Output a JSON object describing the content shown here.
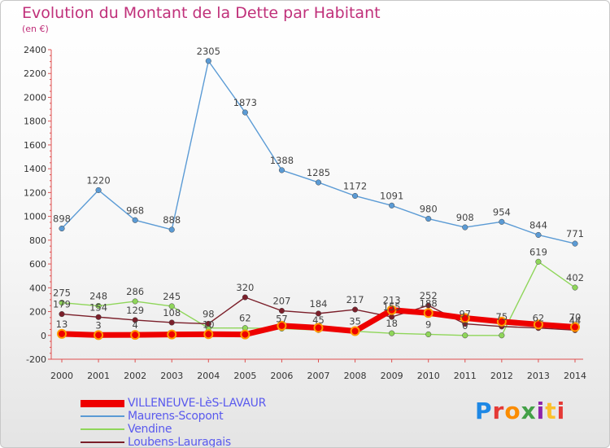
{
  "title": "Evolution du Montant de la Dette par Habitant",
  "subtitle": "(en €)",
  "logo": {
    "text": "Proxiti",
    "colors": [
      "#1e88e5",
      "#e53935",
      "#fb8c00",
      "#43a047",
      "#8e24aa",
      "#fbc02d",
      "#e53935"
    ]
  },
  "chart_data": {
    "type": "line",
    "title": "Evolution du Montant de la Dette par Habitant",
    "subtitle": "(en €)",
    "xlabel": "",
    "ylabel": "",
    "x": [
      "2000",
      "2001",
      "2002",
      "2003",
      "2004",
      "2005",
      "2006",
      "2007",
      "2008",
      "2009",
      "2010",
      "2011",
      "2012",
      "2013",
      "2014"
    ],
    "ylim": [
      -200,
      2400
    ],
    "yticks": [
      -200,
      0,
      200,
      400,
      600,
      800,
      1000,
      1200,
      1400,
      1600,
      1800,
      2000,
      2200,
      2400
    ],
    "grid": false,
    "legend_position": "bottom-left",
    "series": [
      {
        "name": "VILLENEUVE-LèS-LAVAUR",
        "color": "#ee0000",
        "width": 7,
        "values": [
          13,
          3,
          4,
          8,
          10,
          8,
          81,
          64,
          36,
          213,
          188,
          146,
          116,
          92,
          70
        ],
        "labels": [
          "13",
          "3",
          "4",
          "",
          "10",
          "",
          "",
          "",
          "",
          "213",
          "188",
          "",
          "",
          "",
          "70"
        ]
      },
      {
        "name": "Maurens-Scopont",
        "color": "#5b9bd5",
        "width": 1.4,
        "values": [
          898,
          1220,
          968,
          888,
          2305,
          1873,
          1388,
          1285,
          1172,
          1091,
          980,
          908,
          954,
          844,
          771
        ],
        "labels": [
          "898",
          "1220",
          "968",
          "888",
          "2305",
          "1873",
          "1388",
          "1285",
          "1172",
          "1091",
          "980",
          "908",
          "954",
          "844",
          "771"
        ]
      },
      {
        "name": "Vendine",
        "color": "#8fd65a",
        "width": 1.4,
        "values": [
          275,
          248,
          286,
          245,
          62,
          62,
          57,
          45,
          35,
          18,
          9,
          0,
          0,
          619,
          402
        ],
        "labels": [
          "275",
          "248",
          "286",
          "245",
          "",
          "62",
          "57",
          "45",
          "35",
          "18",
          "9",
          "0",
          "",
          "619",
          "402"
        ]
      },
      {
        "name": "Loubens-Lauragais",
        "color": "#7b1f2a",
        "width": 1.4,
        "values": [
          179,
          154,
          129,
          108,
          98,
          320,
          207,
          184,
          217,
          155,
          252,
          97,
          75,
          62,
          44
        ],
        "labels": [
          "179",
          "154",
          "129",
          "108",
          "98",
          "320",
          "207",
          "184",
          "217",
          "155",
          "252",
          "97",
          "75",
          "62",
          "44"
        ]
      }
    ]
  }
}
